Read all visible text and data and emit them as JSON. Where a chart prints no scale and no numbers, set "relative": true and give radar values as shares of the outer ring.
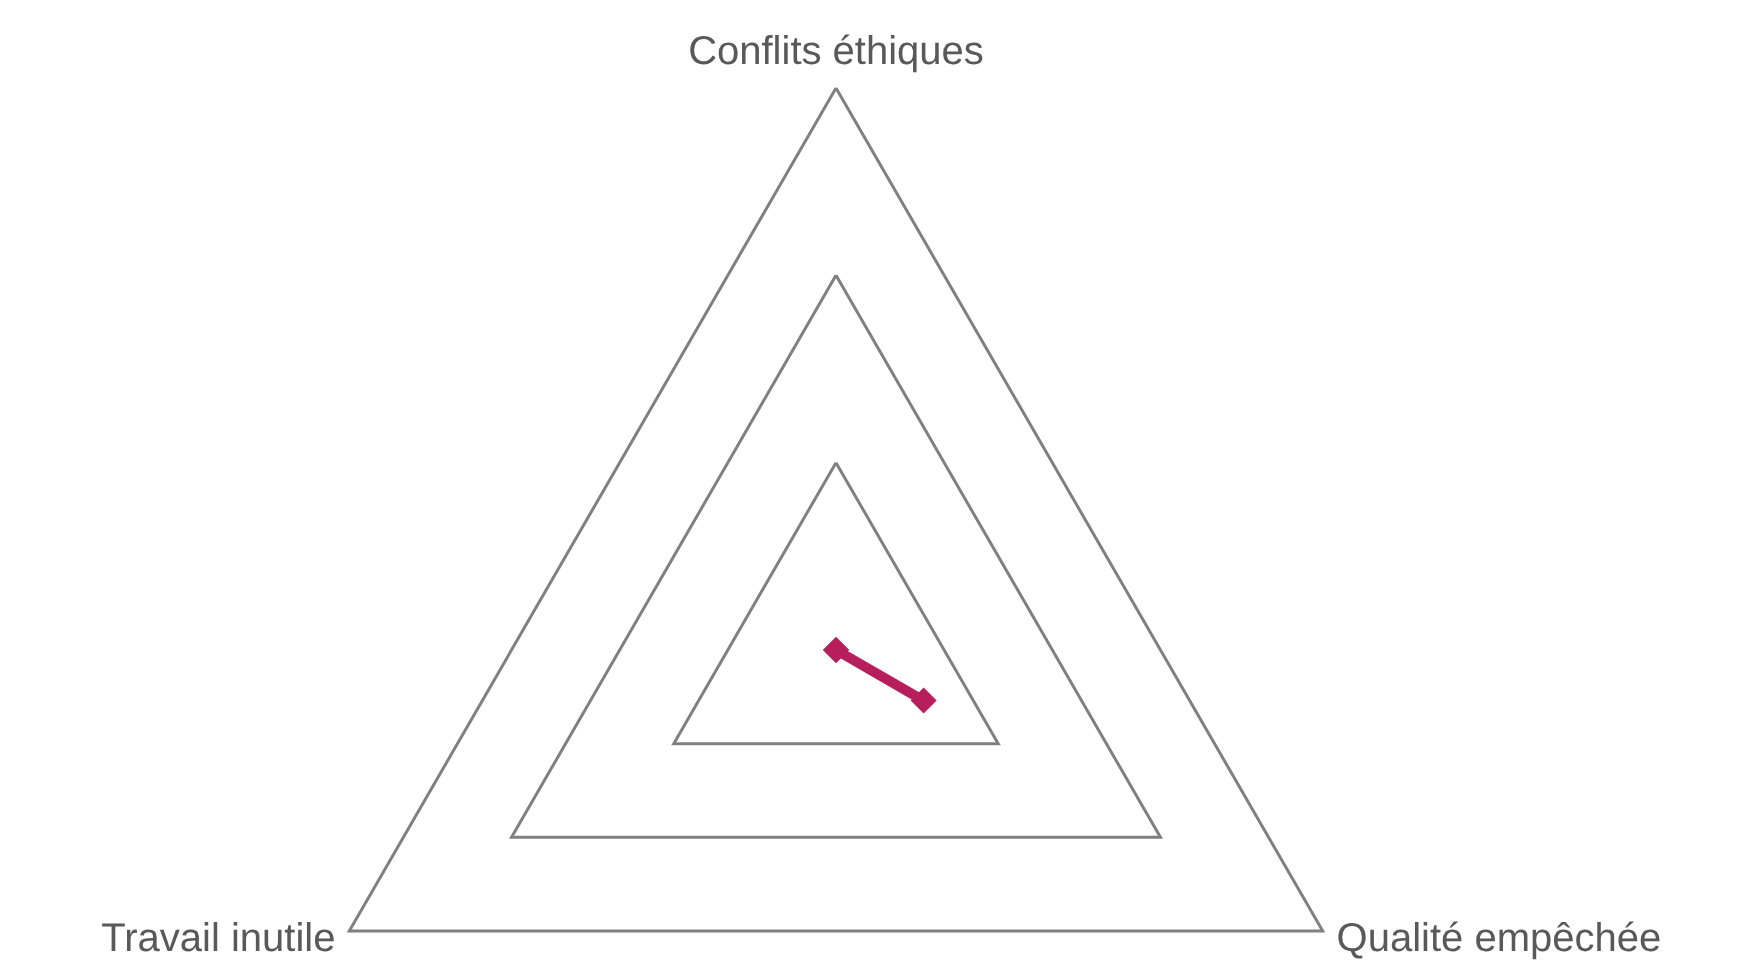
{
  "chart_data": {
    "type": "radar",
    "relative": true,
    "categories": [
      "Conflits éthiques",
      "Qualité empêchée",
      "Travail inutile"
    ],
    "series": [
      {
        "color": "#b71f5c",
        "values": [
          0,
          0.18,
          0
        ]
      }
    ],
    "grid": true,
    "marker": "diamond",
    "line_style": "solid"
  }
}
